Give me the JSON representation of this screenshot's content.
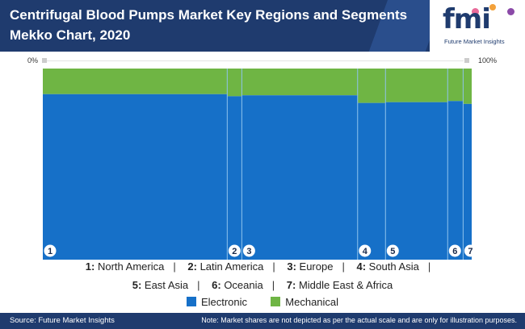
{
  "header": {
    "title_line1": "Centrifugal Blood Pumps Market Key Regions and Segments",
    "title_line2": "Mekko Chart, 2020"
  },
  "logo": {
    "text": "fmi",
    "subtitle": "Future Market Insights"
  },
  "scale": {
    "left": "0%",
    "right": "100%"
  },
  "regions_legend": [
    {
      "num": "1:",
      "name": "North America"
    },
    {
      "num": "2:",
      "name": "Latin America"
    },
    {
      "num": "3:",
      "name": "Europe"
    },
    {
      "num": "4:",
      "name": "South Asia"
    },
    {
      "num": "5:",
      "name": "East Asia"
    },
    {
      "num": "6:",
      "name": "Oceania"
    },
    {
      "num": "7:",
      "name": "Middle East & Africa"
    }
  ],
  "separator": "|",
  "footer": {
    "source": "Source: Future Market Insights",
    "note": "Note: Market shares are not depicted as per the actual scale and are only for illustration purposes."
  },
  "colors": {
    "electronic": "#1670c8",
    "mechanical": "#6fb544",
    "divider": "#8fc3ec"
  },
  "chart_data": {
    "type": "mekko",
    "xlabel": "",
    "ylabel": "",
    "ylim": [
      0,
      100
    ],
    "categories": [
      "1",
      "2",
      "3",
      "4",
      "5",
      "6",
      "7"
    ],
    "widths": [
      43,
      3.4,
      27,
      6.5,
      14.5,
      3.6,
      2
    ],
    "series": [
      {
        "name": "Electronic",
        "values": [
          86.6,
          85.5,
          86.0,
          82.0,
          82.4,
          83.0,
          81.5
        ]
      },
      {
        "name": "Mechanical",
        "values": [
          13.4,
          14.5,
          14.0,
          18.0,
          17.6,
          17.0,
          18.5
        ]
      }
    ]
  }
}
